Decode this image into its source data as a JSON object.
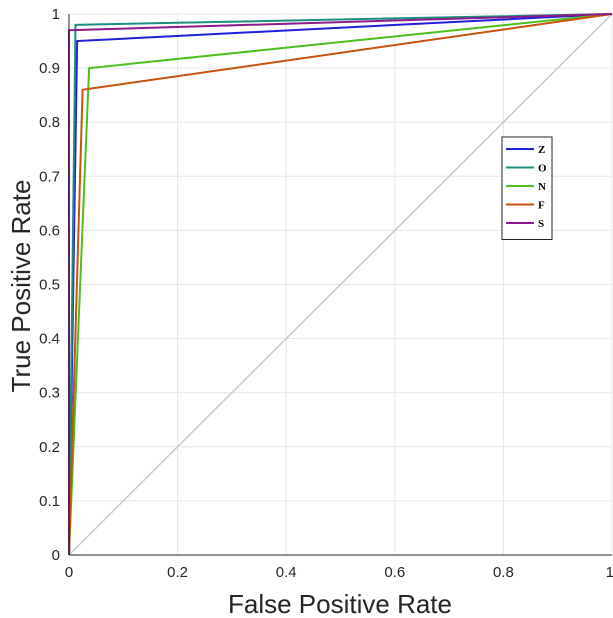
{
  "chart_data": {
    "type": "line",
    "title": "",
    "xlabel": "False Positive Rate",
    "ylabel": "True Positive Rate",
    "xlim": [
      0,
      1
    ],
    "ylim": [
      0,
      1
    ],
    "grid": true,
    "legend_position": "right",
    "x_ticks": [
      "0",
      "0.2",
      "0.4",
      "0.6",
      "0.8",
      "1"
    ],
    "y_ticks": [
      "0",
      "0.1",
      "0.2",
      "0.3",
      "0.4",
      "0.5",
      "0.6",
      "0.7",
      "0.8",
      "0.9",
      "1"
    ],
    "diagonal": {
      "points": [
        [
          0,
          0
        ],
        [
          1,
          1
        ]
      ],
      "color": "#c8c8c8"
    },
    "series": [
      {
        "name": "Z",
        "color": "#1f1fdc",
        "points": [
          [
            0,
            0
          ],
          [
            0.015,
            0.95
          ],
          [
            1,
            1
          ]
        ]
      },
      {
        "name": "O",
        "color": "#1a8f7f",
        "points": [
          [
            0,
            0
          ],
          [
            0.012,
            0.98
          ],
          [
            1,
            1
          ]
        ]
      },
      {
        "name": "N",
        "color": "#4cbf1f",
        "points": [
          [
            0,
            0
          ],
          [
            0.037,
            0.9
          ],
          [
            1,
            1
          ]
        ]
      },
      {
        "name": "F",
        "color": "#c8520f",
        "points": [
          [
            0,
            0
          ],
          [
            0.025,
            0.86
          ],
          [
            1,
            1
          ]
        ]
      },
      {
        "name": "S",
        "color": "#8c1a8c",
        "points": [
          [
            0,
            0
          ],
          [
            0.0,
            0.97
          ],
          [
            1,
            1
          ]
        ]
      }
    ]
  }
}
